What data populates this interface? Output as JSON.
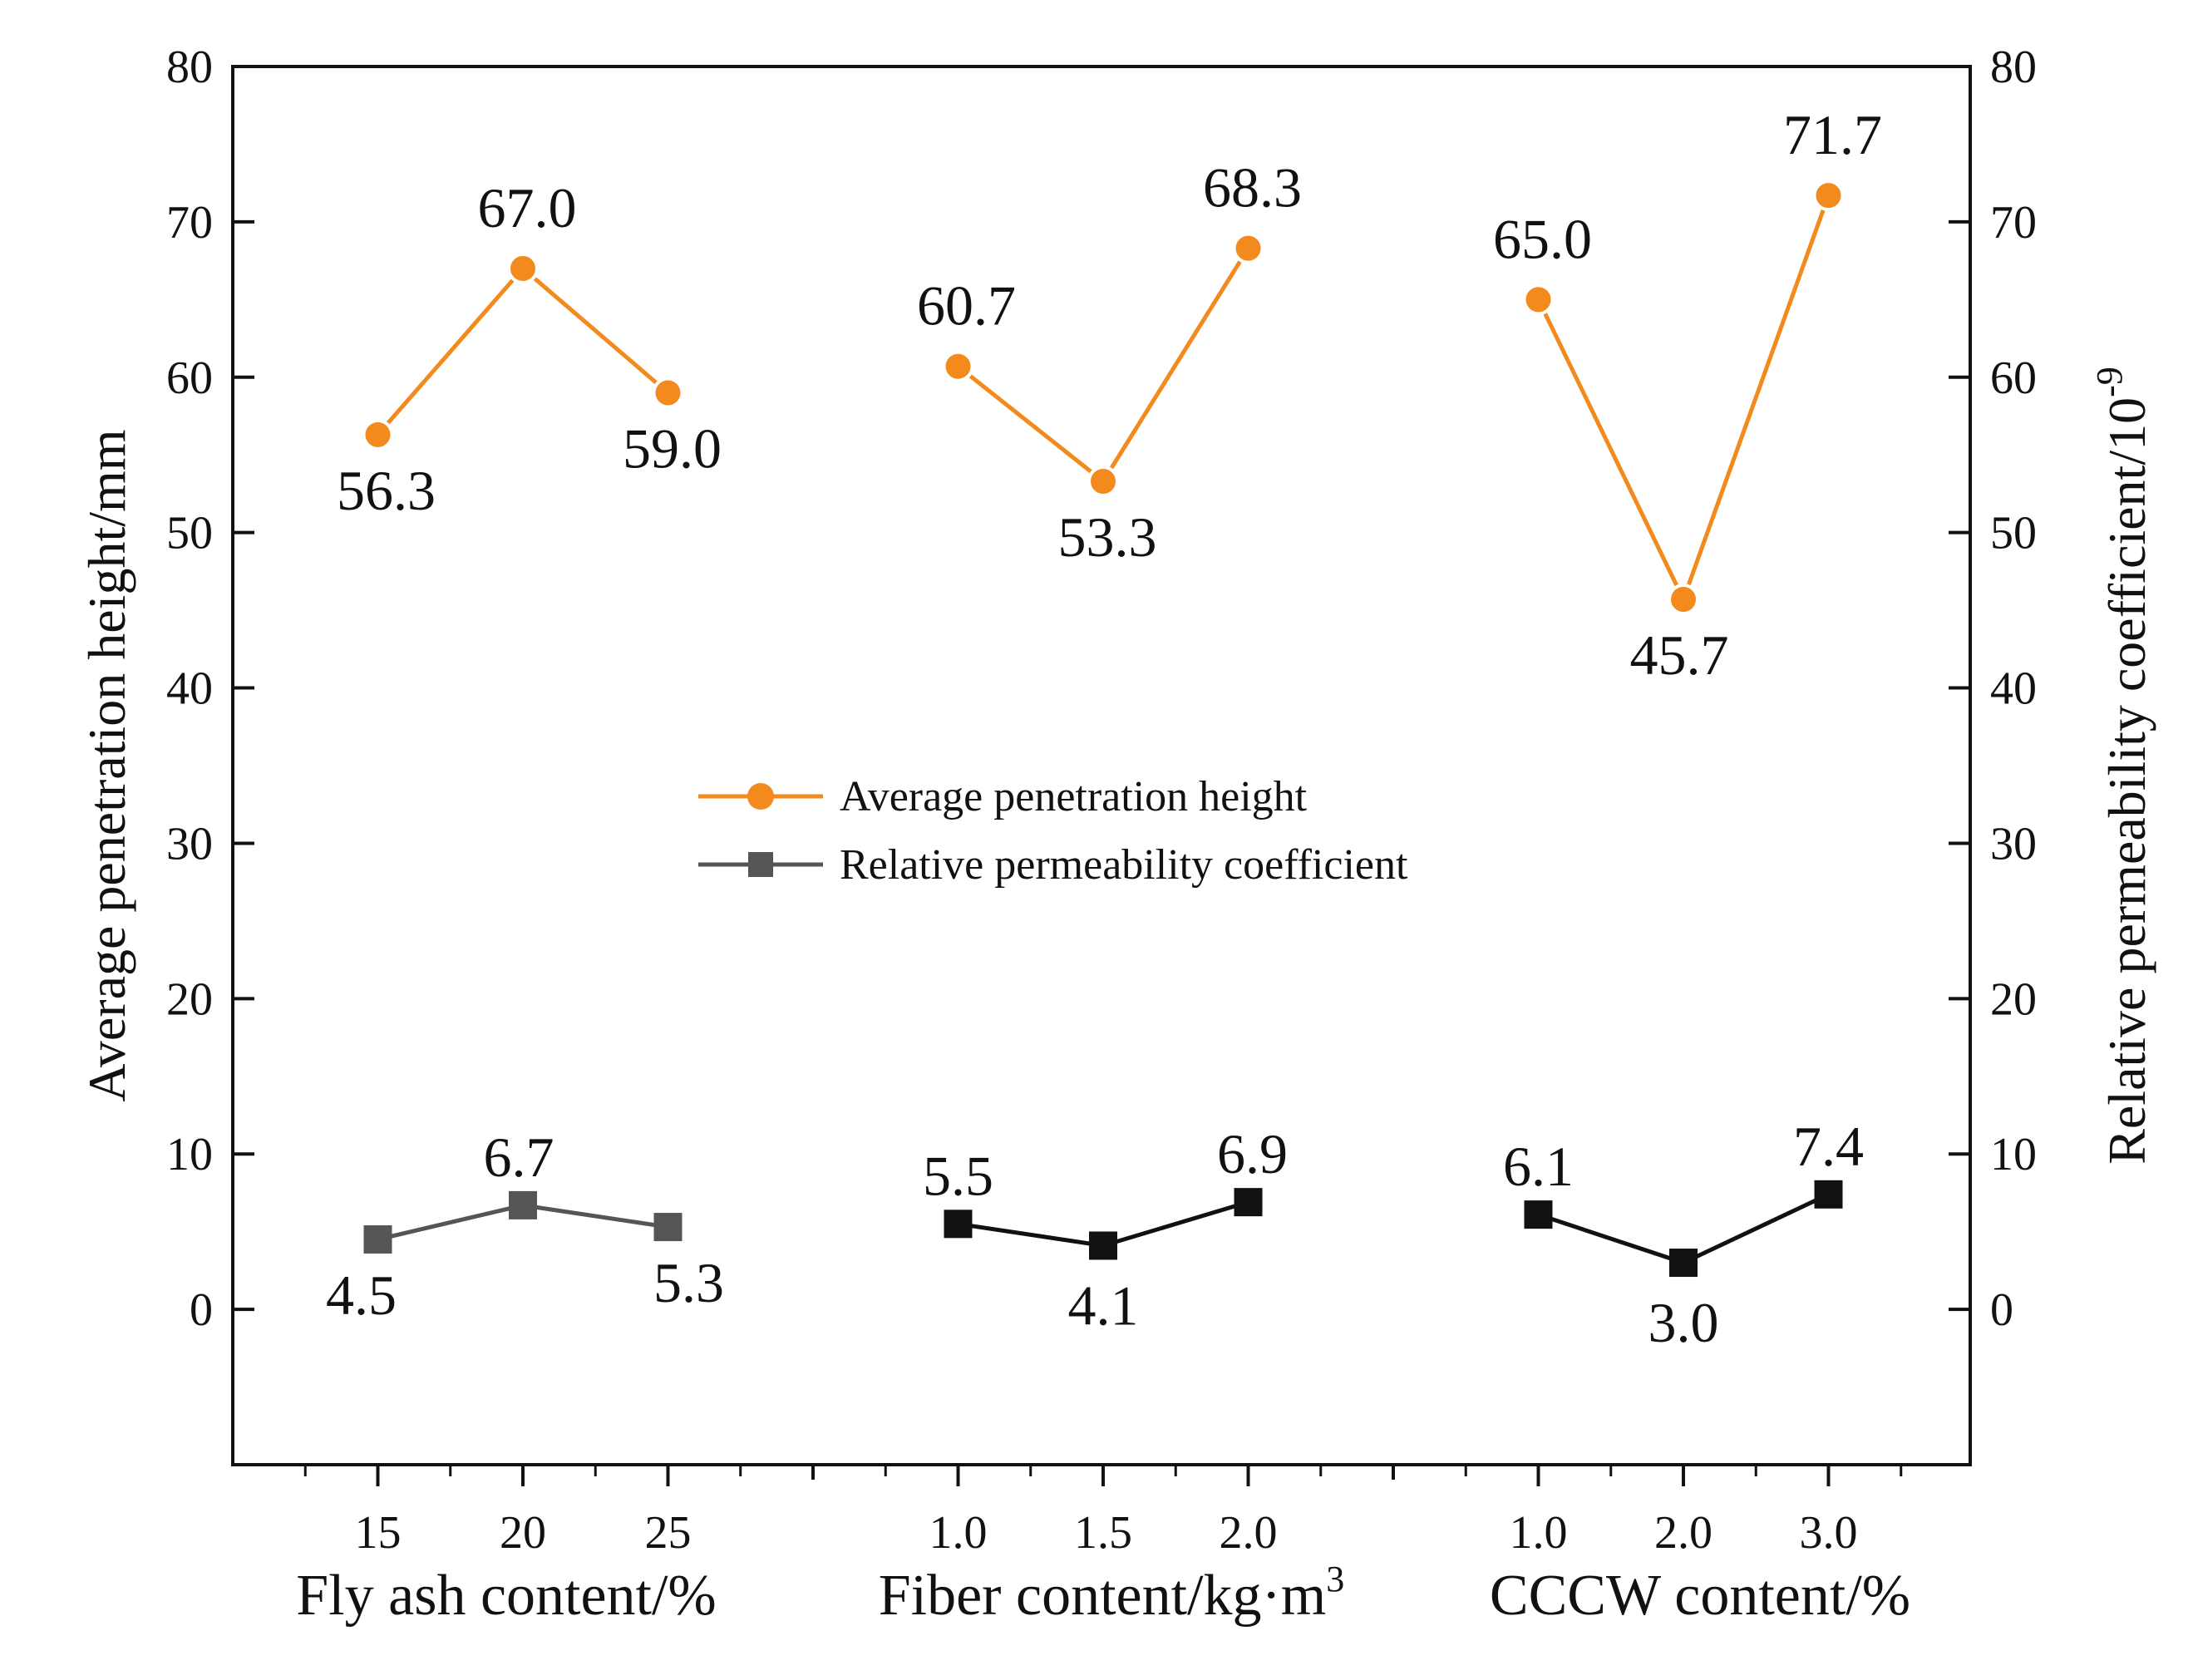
{
  "chart_data": {
    "type": "line",
    "ylabel_left": "Average penetration height/mm",
    "ylabel_right_prefix": "Relative permeability coefficient/10",
    "ylabel_right_exponent": "-9",
    "ylim": [
      -10,
      80
    ],
    "yticks": [
      0,
      10,
      20,
      30,
      40,
      50,
      60,
      70,
      80
    ],
    "legend": [
      "Average penetration height",
      "Relative permeability coefficient"
    ],
    "legend_position": "center",
    "groups": [
      {
        "xlabel": "Fly ash content/%",
        "categories": [
          "15",
          "20",
          "25"
        ],
        "penetration_height": [
          56.3,
          67.0,
          59.0
        ],
        "penetration_labels": [
          "56.3",
          "67.0",
          "59.0"
        ],
        "permeability": [
          4.5,
          6.7,
          5.3
        ],
        "permeability_labels": [
          "4.5",
          "6.7",
          "5.3"
        ]
      },
      {
        "xlabel_prefix": "Fiber content/kg·m",
        "xlabel_superscript": "3",
        "categories": [
          "1.0",
          "1.5",
          "2.0"
        ],
        "penetration_height": [
          60.7,
          53.3,
          68.3
        ],
        "penetration_labels": [
          "60.7",
          "53.3",
          "68.3"
        ],
        "permeability": [
          5.5,
          4.1,
          6.9
        ],
        "permeability_labels": [
          "5.5",
          "4.1",
          "6.9"
        ]
      },
      {
        "xlabel": "CCCW content/%",
        "categories": [
          "1.0",
          "2.0",
          "3.0"
        ],
        "penetration_height": [
          65.0,
          45.7,
          71.7
        ],
        "penetration_labels": [
          "65.0",
          "45.7",
          "71.7"
        ],
        "permeability": [
          6.1,
          3.0,
          7.4
        ],
        "permeability_labels": [
          "6.1",
          "3.0",
          "7.4"
        ]
      }
    ],
    "colors": {
      "penetration": "#f28a1e",
      "permeability_first": "#555555",
      "permeability": "#111111",
      "axis": "#111111"
    }
  }
}
